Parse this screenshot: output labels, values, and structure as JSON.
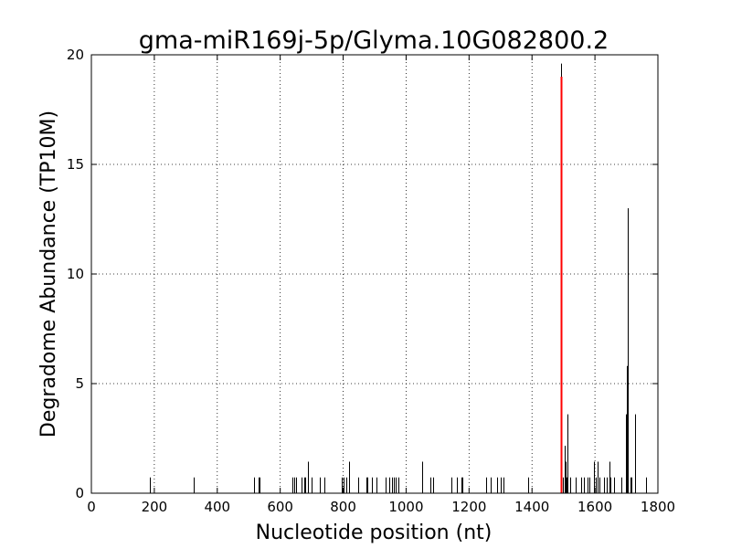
{
  "chart_data": {
    "type": "bar",
    "title": "gma-miR169j-5p/Glyma.10G082800.2",
    "xlabel": "Nucleotide position (nt)",
    "ylabel": "Degradome Abundance (TP10M)",
    "xlim": [
      0,
      1800
    ],
    "ylim": [
      0,
      20
    ],
    "xticks": [
      "0",
      "200",
      "400",
      "600",
      "800",
      "1000",
      "1200",
      "1400",
      "1600",
      "1800"
    ],
    "yticks": [
      "0",
      "5",
      "10",
      "15",
      "20"
    ],
    "grid": true,
    "colors": {
      "bars": "#000000",
      "highlight": "#ff0000",
      "grid": "#000000"
    },
    "highlight": {
      "x": 1491,
      "y": 19.0
    },
    "series": [
      {
        "values": [
          {
            "x": 185,
            "y": 0.72
          },
          {
            "x": 325,
            "y": 0.72
          },
          {
            "x": 518,
            "y": 0.72
          },
          {
            "x": 530,
            "y": 0.72
          },
          {
            "x": 535,
            "y": 0.72
          },
          {
            "x": 640,
            "y": 0.72
          },
          {
            "x": 645,
            "y": 0.72
          },
          {
            "x": 650,
            "y": 0.72
          },
          {
            "x": 668,
            "y": 0.72
          },
          {
            "x": 675,
            "y": 0.72
          },
          {
            "x": 680,
            "y": 0.72
          },
          {
            "x": 688,
            "y": 1.44
          },
          {
            "x": 700,
            "y": 0.72
          },
          {
            "x": 725,
            "y": 0.72
          },
          {
            "x": 740,
            "y": 0.72
          },
          {
            "x": 795,
            "y": 0.72
          },
          {
            "x": 800,
            "y": 0.72
          },
          {
            "x": 810,
            "y": 0.72
          },
          {
            "x": 820,
            "y": 1.44
          },
          {
            "x": 848,
            "y": 0.72
          },
          {
            "x": 873,
            "y": 0.72
          },
          {
            "x": 878,
            "y": 0.72
          },
          {
            "x": 890,
            "y": 0.72
          },
          {
            "x": 905,
            "y": 0.72
          },
          {
            "x": 935,
            "y": 0.72
          },
          {
            "x": 945,
            "y": 0.72
          },
          {
            "x": 955,
            "y": 0.72
          },
          {
            "x": 962,
            "y": 0.72
          },
          {
            "x": 968,
            "y": 0.72
          },
          {
            "x": 975,
            "y": 0.72
          },
          {
            "x": 1052,
            "y": 1.44
          },
          {
            "x": 1078,
            "y": 0.72
          },
          {
            "x": 1085,
            "y": 0.72
          },
          {
            "x": 1145,
            "y": 0.72
          },
          {
            "x": 1160,
            "y": 0.72
          },
          {
            "x": 1175,
            "y": 0.72
          },
          {
            "x": 1178,
            "y": 0.72
          },
          {
            "x": 1255,
            "y": 0.72
          },
          {
            "x": 1270,
            "y": 0.72
          },
          {
            "x": 1290,
            "y": 0.72
          },
          {
            "x": 1300,
            "y": 0.72
          },
          {
            "x": 1310,
            "y": 0.72
          },
          {
            "x": 1388,
            "y": 0.72
          },
          {
            "x": 1492,
            "y": 19.6
          },
          {
            "x": 1498,
            "y": 0.72
          },
          {
            "x": 1504,
            "y": 2.16
          },
          {
            "x": 1507,
            "y": 1.44
          },
          {
            "x": 1510,
            "y": 0.72
          },
          {
            "x": 1514,
            "y": 3.6
          },
          {
            "x": 1520,
            "y": 0.72
          },
          {
            "x": 1540,
            "y": 0.72
          },
          {
            "x": 1555,
            "y": 0.72
          },
          {
            "x": 1565,
            "y": 0.72
          },
          {
            "x": 1575,
            "y": 0.72
          },
          {
            "x": 1583,
            "y": 0.72
          },
          {
            "x": 1597,
            "y": 1.44
          },
          {
            "x": 1603,
            "y": 0.72
          },
          {
            "x": 1608,
            "y": 1.44
          },
          {
            "x": 1613,
            "y": 0.72
          },
          {
            "x": 1630,
            "y": 0.72
          },
          {
            "x": 1638,
            "y": 0.72
          },
          {
            "x": 1645,
            "y": 1.44
          },
          {
            "x": 1650,
            "y": 0.72
          },
          {
            "x": 1660,
            "y": 0.72
          },
          {
            "x": 1683,
            "y": 0.72
          },
          {
            "x": 1698,
            "y": 3.6
          },
          {
            "x": 1701,
            "y": 5.8
          },
          {
            "x": 1703,
            "y": 13.0
          },
          {
            "x": 1713,
            "y": 0.72
          },
          {
            "x": 1716,
            "y": 0.72
          },
          {
            "x": 1728,
            "y": 3.6
          },
          {
            "x": 1763,
            "y": 0.72
          }
        ]
      }
    ]
  }
}
